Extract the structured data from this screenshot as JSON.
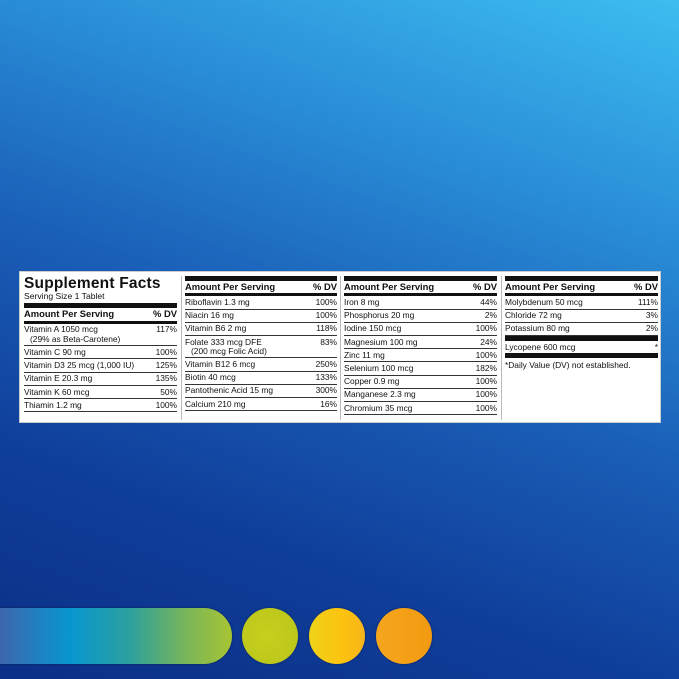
{
  "panel": {
    "title": "Supplement Facts",
    "serving": "Serving Size 1 Tablet",
    "header": {
      "amount": "Amount Per Serving",
      "dv": "% DV"
    },
    "columns": [
      [
        {
          "name": "Vitamin A 1050 mcg",
          "sub": "(29% as Beta-Carotene)",
          "dv": "117%"
        },
        {
          "name": "Vitamin C 90 mg",
          "dv": "100%"
        },
        {
          "name": "Vitamin D3 25 mcg (1,000 IU)",
          "dv": "125%"
        },
        {
          "name": "Vitamin E 20.3 mg",
          "dv": "135%"
        },
        {
          "name": "Vitamin K 60 mcg",
          "dv": "50%"
        },
        {
          "name": "Thiamin 1.2 mg",
          "dv": "100%"
        }
      ],
      [
        {
          "name": "Riboflavin 1.3 mg",
          "dv": "100%"
        },
        {
          "name": "Niacin 16 mg",
          "dv": "100%"
        },
        {
          "name": "Vitamin B6 2 mg",
          "dv": "118%"
        },
        {
          "name": "Folate 333 mcg DFE",
          "sub": "(200 mcg Folic Acid)",
          "dv": "83%"
        },
        {
          "name": "Vitamin B12 6 mcg",
          "dv": "250%"
        },
        {
          "name": "Biotin 40 mcg",
          "dv": "133%"
        },
        {
          "name": "Pantothenic Acid 15 mg",
          "dv": "300%"
        },
        {
          "name": "Calcium 210 mg",
          "dv": "16%"
        }
      ],
      [
        {
          "name": "Iron 8 mg",
          "dv": "44%"
        },
        {
          "name": "Phosphorus 20 mg",
          "dv": "2%"
        },
        {
          "name": "Iodine 150 mcg",
          "dv": "100%"
        },
        {
          "name": "Magnesium 100 mg",
          "dv": "24%"
        },
        {
          "name": "Zinc 11 mg",
          "dv": "100%"
        },
        {
          "name": "Selenium 100 mcg",
          "dv": "182%"
        },
        {
          "name": "Copper 0.9 mg",
          "dv": "100%"
        },
        {
          "name": "Manganese 2.3 mg",
          "dv": "100%"
        },
        {
          "name": "Chromium 35 mcg",
          "dv": "100%"
        }
      ],
      [
        {
          "name": "Molybdenum 50 mcg",
          "dv": "111%"
        },
        {
          "name": "Chloride 72 mg",
          "dv": "3%"
        },
        {
          "name": "Potassium 80 mg",
          "dv": "2%"
        }
      ]
    ],
    "lycopene": {
      "name": "Lycopene 600 mcg",
      "dv": "*"
    },
    "footnote": "*Daily Value (DV) not established."
  },
  "colors": {
    "dots": [
      "#c3cc1c",
      "#f8c414",
      "#f5a01c"
    ]
  }
}
